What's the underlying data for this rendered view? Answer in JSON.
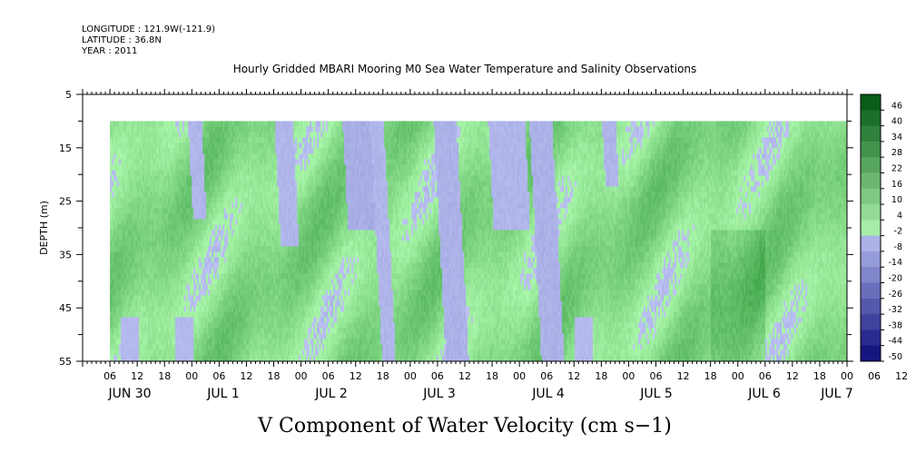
{
  "header": {
    "longitude": "LONGITUDE : 121.9W(-121.9)",
    "latitude": "LATITUDE : 36.8N",
    "year": "YEAR : 2011"
  },
  "chart_data": {
    "type": "heatmap",
    "title": "Hourly Gridded MBARI Mooring M0 Sea Water Temperature and Salinity Observations",
    "xlabel": "",
    "ylabel": "DEPTH (m)",
    "bottom_label": "V Component of Water Velocity (cm s−1)",
    "x_range_hours": [
      0,
      168
    ],
    "data_start_hour": 6,
    "y_range_m": [
      5,
      55
    ],
    "y_ticks": [
      5,
      15,
      25,
      35,
      45,
      55
    ],
    "data_depth_range_m": [
      10,
      55
    ],
    "hour_tick_labels": [
      "06",
      "12",
      "18",
      "00",
      "06",
      "12",
      "18",
      "00",
      "06",
      "12",
      "18",
      "00",
      "06",
      "12",
      "18",
      "00",
      "06",
      "12",
      "18",
      "00",
      "06",
      "12",
      "18",
      "00",
      "06",
      "12",
      "18",
      "00",
      "06",
      "12",
      "18",
      "00"
    ],
    "day_labels": [
      "JUN 30",
      "JUL  1",
      "JUL  2",
      "JUL  3",
      "JUL  4",
      "JUL  5",
      "JUL  6",
      "JUL  7"
    ],
    "colorbar_ticks": [
      46,
      40,
      34,
      28,
      22,
      16,
      10,
      4,
      -2,
      -8,
      -14,
      -20,
      -26,
      -32,
      -38,
      -44,
      -50
    ],
    "colorbar_range": [
      -50,
      50
    ],
    "value_range_observed": [
      -20,
      25
    ],
    "negative_bands_hours": [
      {
        "from": 23,
        "to": 26,
        "depth_to": 28,
        "value": -4
      },
      {
        "from": 42,
        "to": 46,
        "depth_to": 33,
        "value": -4
      },
      {
        "from": 57,
        "to": 63,
        "depth_to": 30,
        "value": -6
      },
      {
        "from": 63,
        "to": 66,
        "depth_to": 55,
        "value": -4
      },
      {
        "from": 77,
        "to": 82,
        "depth_to": 55,
        "value": -5
      },
      {
        "from": 89,
        "to": 97,
        "depth_to": 30,
        "value": -4
      },
      {
        "from": 98,
        "to": 103,
        "depth_to": 55,
        "value": -5
      },
      {
        "from": 114,
        "to": 117,
        "depth_to": 22,
        "value": -4
      }
    ]
  },
  "colors": {
    "positive_dark": "#0b7a22",
    "positive": "#22dd44",
    "positive_light": "#90f090",
    "negative_light": "#b0b6f0",
    "negative": "#5a62e8",
    "negative_dark": "#0a0a78"
  }
}
